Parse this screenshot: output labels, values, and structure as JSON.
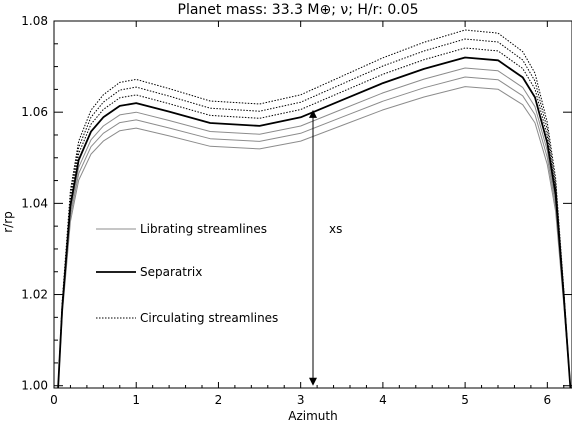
{
  "chart_data": {
    "type": "line",
    "title": "Planet mass: 33.3 M⊕; ν; H/r: 0.05",
    "xlabel": "Azimuth",
    "ylabel": "r/rp",
    "xlim": [
      0,
      6.3
    ],
    "ylim": [
      0.9995,
      1.08
    ],
    "xticks": [
      0,
      1,
      2,
      3,
      4,
      5,
      6
    ],
    "xtick_labels": [
      "0",
      "1",
      "2",
      "3",
      "4",
      "5",
      "6"
    ],
    "yticks": [
      1.0,
      1.02,
      1.04,
      1.06,
      1.08
    ],
    "ytick_labels": [
      "1.00",
      "1.02",
      "1.04",
      "1.06",
      "1.08"
    ],
    "grid": false,
    "legend": {
      "placement": "center-left",
      "entries": [
        {
          "label": "Librating streamlines",
          "style": "thin-gray"
        },
        {
          "label": "Separatrix",
          "style": "thick-solid"
        },
        {
          "label": "Circulating streamlines",
          "style": "dotted"
        }
      ]
    },
    "profile": {
      "azimuth": [
        0.05,
        0.1,
        0.2,
        0.3,
        0.45,
        0.6,
        0.8,
        1.0,
        1.4,
        1.9,
        2.5,
        3.0,
        3.5,
        4.0,
        4.5,
        5.0,
        5.4,
        5.7,
        5.85,
        6.0,
        6.1,
        6.2,
        6.28
      ],
      "shape": [
        0.0,
        0.28,
        0.64,
        0.8,
        0.9,
        0.95,
        0.99,
        1.0,
        0.97,
        0.93,
        0.92,
        0.95,
        1.01,
        1.07,
        1.12,
        1.16,
        1.15,
        1.09,
        1.02,
        0.86,
        0.68,
        0.32,
        0.0
      ]
    },
    "series": [
      {
        "style": "thin-gray",
        "peak_r": 1.0565
      },
      {
        "style": "thin-gray",
        "peak_r": 1.0583
      },
      {
        "style": "thin-gray",
        "peak_r": 1.06
      },
      {
        "style": "thick-solid",
        "peak_r": 1.062
      },
      {
        "style": "dotted",
        "peak_r": 1.0638
      },
      {
        "style": "dotted",
        "peak_r": 1.0655
      },
      {
        "style": "dotted",
        "peak_r": 1.0672
      }
    ],
    "annotations": [
      {
        "label": "xs",
        "x": 3.15,
        "y_from": 1.0,
        "y_to": 1.0605
      }
    ]
  }
}
